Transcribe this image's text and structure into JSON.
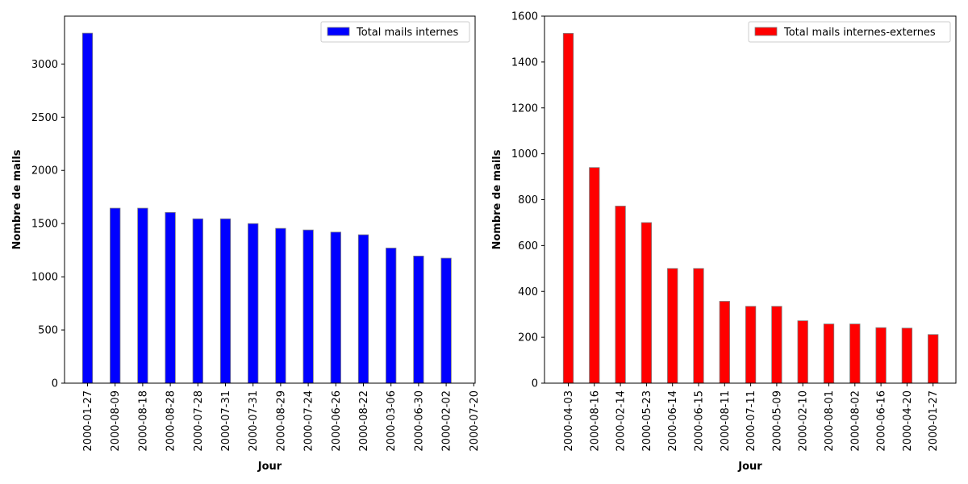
{
  "chart_data": [
    {
      "type": "bar",
      "categories": [
        "2000-01-27",
        "2000-08-09",
        "2000-08-18",
        "2000-08-28",
        "2000-07-28",
        "2000-07-31",
        "2000-07-31",
        "2000-08-29",
        "2000-07-24",
        "2000-06-26",
        "2000-08-22",
        "2000-03-06",
        "2000-06-30",
        "2000-02-02",
        "2000-07-20"
      ],
      "series": [
        {
          "name": "Total mails internes",
          "color": "#0000ff",
          "values": [
            3290,
            1645,
            1645,
            1605,
            1545,
            1545,
            1500,
            1455,
            1440,
            1420,
            1395,
            1270,
            1195,
            1175,
            null
          ]
        }
      ],
      "xlabel": "Jour",
      "ylabel": "Nombre de mails",
      "ylim": [
        0,
        3450
      ],
      "yticks": [
        0,
        500,
        1000,
        1500,
        2000,
        2500,
        3000
      ],
      "legend": "top-right",
      "grid": false
    },
    {
      "type": "bar",
      "categories": [
        "2000-04-03",
        "2000-08-16",
        "2000-02-14",
        "2000-05-23",
        "2000-06-14",
        "2000-06-15",
        "2000-08-11",
        "2000-07-11",
        "2000-05-09",
        "2000-02-10",
        "2000-08-01",
        "2000-08-02",
        "2000-06-16",
        "2000-04-20",
        "2000-01-27"
      ],
      "series": [
        {
          "name": "Total mails internes-externes",
          "color": "#ff0000",
          "values": [
            1525,
            940,
            772,
            700,
            500,
            500,
            357,
            335,
            335,
            272,
            258,
            258,
            242,
            240,
            212
          ]
        }
      ],
      "xlabel": "Jour",
      "ylabel": "Nombre de mails",
      "ylim": [
        0,
        1600
      ],
      "yticks": [
        0,
        200,
        400,
        600,
        800,
        1000,
        1200,
        1400,
        1600
      ],
      "legend": "top-right",
      "grid": false
    }
  ]
}
